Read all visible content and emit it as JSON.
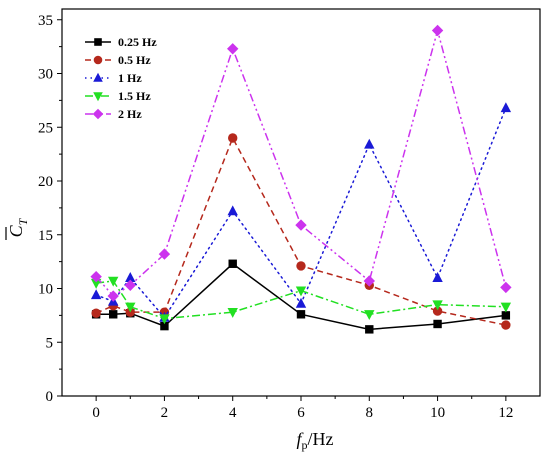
{
  "chart_data": {
    "type": "line",
    "title": "",
    "xlabel": "f",
    "xlabel_sub": "p",
    "xlabel_unit": "/Hz",
    "ylabel": "C",
    "ylabel_sub": "T",
    "xlim": [
      -1,
      13
    ],
    "ylim": [
      0,
      36
    ],
    "xticks": [
      0,
      2,
      4,
      6,
      8,
      10,
      12
    ],
    "yticks": [
      0,
      5,
      10,
      15,
      20,
      25,
      30,
      35
    ],
    "grid": false,
    "legend_position": "top-left",
    "series": [
      {
        "name": "0.25 Hz",
        "color": "#000000",
        "marker": "square",
        "line_style": "solid",
        "x": [
          0,
          0.5,
          1,
          2,
          4,
          6,
          8,
          10,
          12
        ],
        "y": [
          7.6,
          7.6,
          7.7,
          6.5,
          12.3,
          7.6,
          6.2,
          6.7,
          7.5
        ]
      },
      {
        "name": "0.5 Hz",
        "color": "#b5281c",
        "marker": "circle",
        "line_style": "dashed",
        "x": [
          0,
          0.5,
          1,
          2,
          4,
          6,
          8,
          10,
          12
        ],
        "y": [
          7.7,
          8.4,
          7.8,
          7.8,
          24.0,
          12.1,
          10.3,
          7.9,
          6.6
        ]
      },
      {
        "name": "1 Hz",
        "color": "#1a1ad6",
        "marker": "triangle-up",
        "line_style": "dotted",
        "x": [
          0,
          0.5,
          1,
          2,
          4,
          6,
          8,
          10,
          12
        ],
        "y": [
          9.4,
          8.8,
          11.0,
          7.3,
          17.2,
          8.6,
          23.4,
          11.0,
          26.8
        ]
      },
      {
        "name": "1.5 Hz",
        "color": "#22e022",
        "marker": "triangle-down",
        "line_style": "dashdot",
        "x": [
          0,
          0.5,
          1,
          2,
          4,
          6,
          8,
          10,
          12
        ],
        "y": [
          10.5,
          10.7,
          8.3,
          7.2,
          7.8,
          9.8,
          7.6,
          8.5,
          8.3
        ]
      },
      {
        "name": "2 Hz",
        "color": "#cc33ee",
        "marker": "diamond",
        "line_style": "dashdotdot",
        "x": [
          0,
          0.5,
          1,
          2,
          4,
          6,
          8,
          10,
          12
        ],
        "y": [
          11.1,
          9.3,
          10.3,
          13.2,
          32.3,
          15.9,
          10.7,
          34.0,
          10.1
        ]
      }
    ]
  }
}
